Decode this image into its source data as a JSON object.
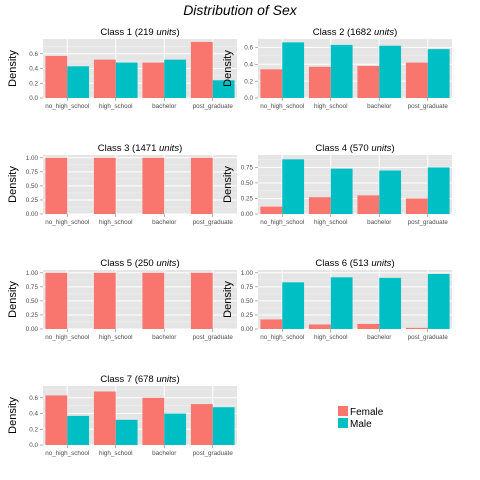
{
  "title": "Distribution of Sex",
  "legend": {
    "placement": "bottom-right",
    "items": [
      {
        "label": "Female",
        "color": "#F8766D"
      },
      {
        "label": "Male",
        "color": "#00BFC4"
      }
    ]
  },
  "chart_data": [
    {
      "type": "bar",
      "title_prefix": "Class 1 (",
      "title_count": "219",
      "title_unit": "units",
      "title_suffix": ")",
      "ylabel": "Density",
      "categories": [
        "no_high_school",
        "high_school",
        "bachelor",
        "post_graduate"
      ],
      "ylim": [
        0,
        0.8
      ],
      "yticks": [
        "0.0",
        "0.2",
        "0.4",
        "0.6"
      ],
      "ytick_values": [
        0,
        0.2,
        0.4,
        0.6
      ],
      "grid": true,
      "series": [
        {
          "name": "Female",
          "values": [
            0.57,
            0.52,
            0.48,
            0.76
          ]
        },
        {
          "name": "Male",
          "values": [
            0.43,
            0.48,
            0.52,
            0.24
          ]
        }
      ]
    },
    {
      "type": "bar",
      "title_prefix": "Class 2 (",
      "title_count": "1682",
      "title_unit": "units",
      "title_suffix": ")",
      "ylabel": "Density",
      "categories": [
        "no_high_school",
        "high_school",
        "bachelor",
        "post_graduate"
      ],
      "ylim": [
        0,
        0.7
      ],
      "yticks": [
        "0.0",
        "0.2",
        "0.4",
        "0.6"
      ],
      "ytick_values": [
        0,
        0.2,
        0.4,
        0.6
      ],
      "grid": true,
      "series": [
        {
          "name": "Female",
          "values": [
            0.34,
            0.37,
            0.38,
            0.42
          ]
        },
        {
          "name": "Male",
          "values": [
            0.66,
            0.63,
            0.62,
            0.58
          ]
        }
      ]
    },
    {
      "type": "bar",
      "title_prefix": "Class 3 (",
      "title_count": "1471",
      "title_unit": "units",
      "title_suffix": ")",
      "ylabel": "Density",
      "categories": [
        "no_high_school",
        "high_school",
        "bachelor",
        "post_graduate"
      ],
      "ylim": [
        0,
        1.05
      ],
      "yticks": [
        "0.00",
        "0.25",
        "0.50",
        "0.75",
        "1.00"
      ],
      "ytick_values": [
        0,
        0.25,
        0.5,
        0.75,
        1.0
      ],
      "grid": true,
      "series": [
        {
          "name": "Female",
          "values": [
            1.0,
            1.0,
            1.0,
            1.0
          ]
        },
        {
          "name": "Male",
          "values": [
            0,
            0,
            0,
            0
          ]
        }
      ]
    },
    {
      "type": "bar",
      "title_prefix": "Class 4 (",
      "title_count": "570",
      "title_unit": "units",
      "title_suffix": ")",
      "ylabel": "Density",
      "categories": [
        "no_high_school",
        "high_school",
        "bachelor",
        "post_graduate"
      ],
      "ylim": [
        0,
        0.95
      ],
      "yticks": [
        "0.00",
        "0.25",
        "0.50",
        "0.75"
      ],
      "ytick_values": [
        0,
        0.25,
        0.5,
        0.75
      ],
      "grid": true,
      "series": [
        {
          "name": "Female",
          "values": [
            0.12,
            0.27,
            0.3,
            0.25
          ]
        },
        {
          "name": "Male",
          "values": [
            0.88,
            0.73,
            0.7,
            0.75
          ]
        }
      ]
    },
    {
      "type": "bar",
      "title_prefix": "Class 5 (",
      "title_count": "250",
      "title_unit": "units",
      "title_suffix": ")",
      "ylabel": "Density",
      "categories": [
        "no_high_school",
        "high_school",
        "bachelor",
        "post_graduate"
      ],
      "ylim": [
        0,
        1.05
      ],
      "yticks": [
        "0.00",
        "0.25",
        "0.50",
        "0.75",
        "1.00"
      ],
      "ytick_values": [
        0,
        0.25,
        0.5,
        0.75,
        1.0
      ],
      "grid": true,
      "series": [
        {
          "name": "Female",
          "values": [
            1.0,
            1.0,
            1.0,
            1.0
          ]
        },
        {
          "name": "Male",
          "values": [
            0,
            0,
            0,
            0
          ]
        }
      ]
    },
    {
      "type": "bar",
      "title_prefix": "Class 6 (",
      "title_count": "513",
      "title_unit": "units",
      "title_suffix": ")",
      "ylabel": "Density",
      "categories": [
        "no_high_school",
        "high_school",
        "bachelor",
        "post_graduate"
      ],
      "ylim": [
        0,
        1.05
      ],
      "yticks": [
        "0.00",
        "0.25",
        "0.50",
        "0.75",
        "1.00"
      ],
      "ytick_values": [
        0,
        0.25,
        0.5,
        0.75,
        1.0
      ],
      "grid": true,
      "series": [
        {
          "name": "Female",
          "values": [
            0.17,
            0.08,
            0.09,
            0.02
          ]
        },
        {
          "name": "Male",
          "values": [
            0.83,
            0.92,
            0.91,
            0.98
          ]
        }
      ]
    },
    {
      "type": "bar",
      "title_prefix": "Class 7 (",
      "title_count": "678",
      "title_unit": "units",
      "title_suffix": ")",
      "ylabel": "Density",
      "categories": [
        "no_high_school",
        "high_school",
        "bachelor",
        "post_graduate"
      ],
      "ylim": [
        0,
        0.75
      ],
      "yticks": [
        "0.0",
        "0.2",
        "0.4",
        "0.6"
      ],
      "ytick_values": [
        0,
        0.2,
        0.4,
        0.6
      ],
      "grid": true,
      "series": [
        {
          "name": "Female",
          "values": [
            0.63,
            0.68,
            0.6,
            0.52
          ]
        },
        {
          "name": "Male",
          "values": [
            0.37,
            0.32,
            0.4,
            0.48
          ]
        }
      ]
    }
  ]
}
